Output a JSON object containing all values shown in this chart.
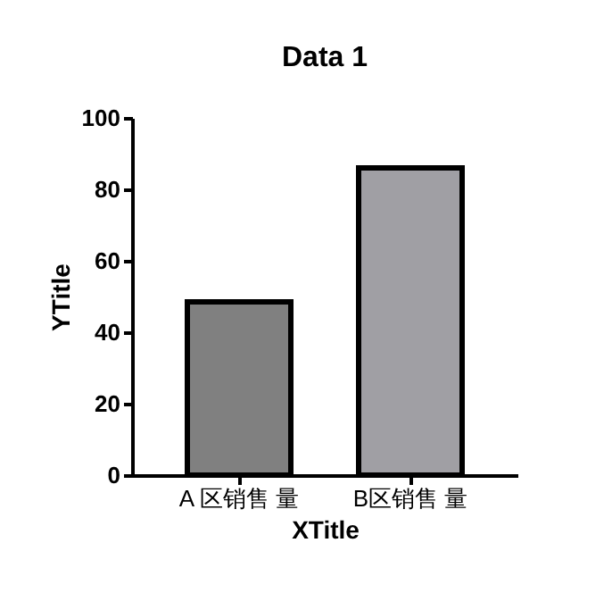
{
  "chart_data": {
    "type": "bar",
    "title": "Data 1",
    "xlabel": "XTitle",
    "ylabel": "YTitle",
    "categories": [
      "A 区销售 量",
      "B区销售 量"
    ],
    "values": [
      48.5,
      86
    ],
    "colors": [
      "#808080",
      "#a09fa4"
    ],
    "ylim": [
      0,
      100
    ],
    "yticks": [
      0,
      20,
      40,
      60,
      80,
      100
    ],
    "grid": false
  }
}
